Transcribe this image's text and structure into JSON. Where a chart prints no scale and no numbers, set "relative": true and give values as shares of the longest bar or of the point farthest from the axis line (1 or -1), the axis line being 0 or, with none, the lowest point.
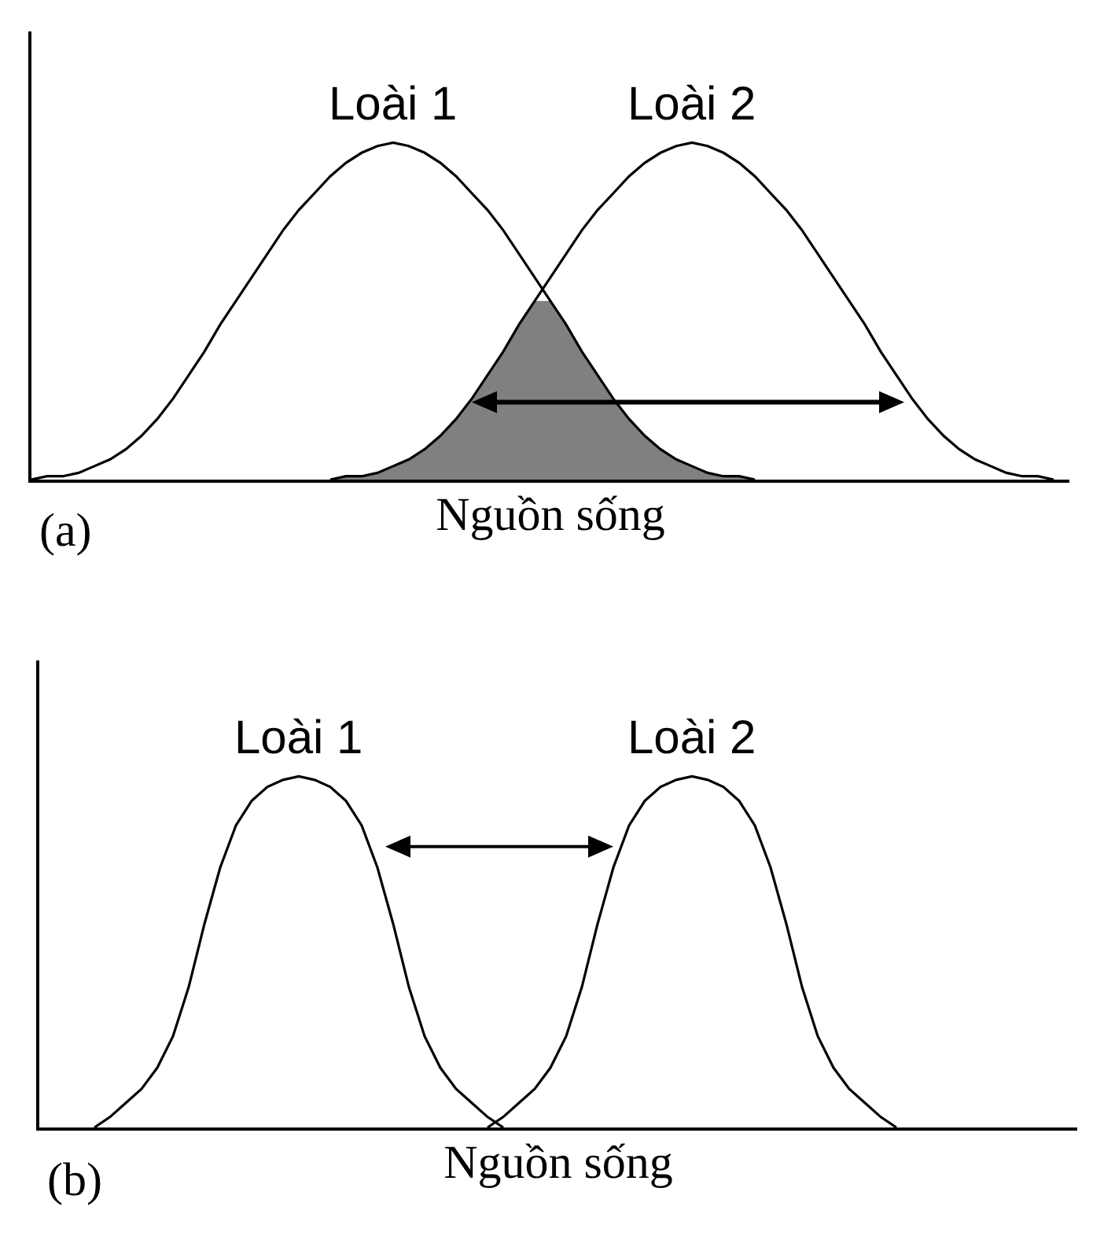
{
  "chart_data": [
    {
      "type": "line",
      "relative": true,
      "xlabel": "Nguồn sống",
      "annotations": [
        "(a)"
      ],
      "tick_labels": false,
      "grid": false,
      "categories": [
        null,
        null,
        null,
        null,
        null,
        null,
        null,
        null,
        null,
        null,
        null,
        null,
        null,
        null,
        null,
        null,
        null,
        null,
        null,
        null,
        null,
        null,
        null,
        null,
        null,
        null,
        null,
        null,
        null,
        null,
        null,
        null,
        null,
        null,
        null,
        null,
        null,
        null,
        null,
        null,
        null,
        null,
        null,
        null,
        null,
        null,
        null,
        null,
        null,
        null,
        null,
        null,
        null,
        null,
        null,
        null,
        null,
        null,
        null,
        null,
        null,
        null,
        null,
        null,
        null,
        null,
        null
      ],
      "series": [
        {
          "type": "area",
          "color": "#808080",
          "values": [
            null,
            null,
            null,
            null,
            null,
            null,
            null,
            null,
            null,
            null,
            null,
            null,
            null,
            null,
            null,
            null,
            null,
            null,
            null,
            0,
            0.01,
            0.01,
            0.02,
            0.04,
            0.06,
            0.09,
            0.13,
            0.18,
            0.24,
            0.31,
            0.38,
            0.46,
            0.53,
            0.53,
            0.46,
            0.38,
            0.31,
            0.24,
            0.18,
            0.13,
            0.09,
            0.06,
            0.04,
            0.02,
            0.01,
            0.01,
            0,
            null,
            null,
            null,
            null,
            null,
            null,
            null,
            null,
            null,
            null,
            null,
            null,
            null,
            null,
            null,
            null,
            null,
            null,
            null,
            null
          ]
        },
        {
          "name": "Loài 1",
          "color": "#000000",
          "values": [
            0,
            0.01,
            0.01,
            0.02,
            0.04,
            0.06,
            0.09,
            0.13,
            0.18,
            0.24,
            0.31,
            0.38,
            0.46,
            0.53,
            0.6,
            0.67,
            0.74,
            0.8,
            0.85,
            0.9,
            0.94,
            0.97,
            0.99,
            1,
            0.99,
            0.97,
            0.94,
            0.9,
            0.85,
            0.8,
            0.74,
            0.67,
            0.6,
            0.53,
            0.46,
            0.38,
            0.31,
            0.24,
            0.18,
            0.13,
            0.09,
            0.06,
            0.04,
            0.02,
            0.01,
            0.01,
            0,
            null,
            null,
            null,
            null,
            null,
            null,
            null,
            null,
            null,
            null,
            null,
            null,
            null,
            null,
            null,
            null,
            null,
            null,
            null,
            null
          ]
        },
        {
          "name": "Loài 2",
          "color": "#000000",
          "values": [
            null,
            null,
            null,
            null,
            null,
            null,
            null,
            null,
            null,
            null,
            null,
            null,
            null,
            null,
            null,
            null,
            null,
            null,
            null,
            0,
            0.01,
            0.01,
            0.02,
            0.04,
            0.06,
            0.09,
            0.13,
            0.18,
            0.24,
            0.31,
            0.38,
            0.46,
            0.53,
            0.6,
            0.67,
            0.74,
            0.8,
            0.85,
            0.9,
            0.94,
            0.97,
            0.99,
            1,
            0.99,
            0.97,
            0.94,
            0.9,
            0.85,
            0.8,
            0.74,
            0.67,
            0.6,
            0.53,
            0.46,
            0.38,
            0.31,
            0.24,
            0.18,
            0.13,
            0.09,
            0.06,
            0.04,
            0.02,
            0.01,
            0.01,
            0,
            null
          ]
        }
      ]
    },
    {
      "type": "line",
      "relative": true,
      "xlabel": "Nguồn sống",
      "annotations": [
        "(b)"
      ],
      "tick_labels": false,
      "grid": false,
      "categories": [
        null,
        null,
        null,
        null,
        null,
        null,
        null,
        null,
        null,
        null,
        null,
        null,
        null,
        null,
        null,
        null,
        null,
        null,
        null,
        null,
        null,
        null,
        null,
        null,
        null,
        null,
        null,
        null,
        null,
        null,
        null,
        null,
        null,
        null,
        null,
        null,
        null,
        null,
        null,
        null,
        null,
        null,
        null,
        null,
        null,
        null,
        null,
        null,
        null,
        null,
        null,
        null,
        null,
        null,
        null,
        null,
        null,
        null,
        null,
        null,
        null,
        null,
        null,
        null,
        null,
        null
      ],
      "series": [
        {
          "name": "Loài 1",
          "color": "#000000",
          "values": [
            null,
            null,
            null,
            0,
            0.03,
            0.07,
            0.11,
            0.17,
            0.26,
            0.4,
            0.58,
            0.74,
            0.86,
            0.93,
            0.97,
            0.99,
            1,
            0.99,
            0.97,
            0.93,
            0.86,
            0.74,
            0.58,
            0.4,
            0.26,
            0.17,
            0.11,
            0.07,
            0.03,
            0,
            null,
            null,
            null,
            null,
            null,
            null,
            null,
            null,
            null,
            null,
            null,
            null,
            null,
            null,
            null,
            null,
            null,
            null,
            null,
            null,
            null,
            null,
            null,
            null,
            null,
            null,
            null,
            null,
            null,
            null,
            null,
            null,
            null,
            null,
            null,
            null
          ]
        },
        {
          "name": "Loài 2",
          "color": "#000000",
          "values": [
            null,
            null,
            null,
            null,
            null,
            null,
            null,
            null,
            null,
            null,
            null,
            null,
            null,
            null,
            null,
            null,
            null,
            null,
            null,
            null,
            null,
            null,
            null,
            null,
            null,
            null,
            null,
            null,
            0,
            0.03,
            0.07,
            0.11,
            0.17,
            0.26,
            0.4,
            0.58,
            0.74,
            0.86,
            0.93,
            0.97,
            0.99,
            1,
            0.99,
            0.97,
            0.93,
            0.86,
            0.74,
            0.58,
            0.4,
            0.26,
            0.17,
            0.11,
            0.07,
            0.03,
            0,
            null,
            null,
            null,
            null,
            null,
            null,
            null,
            null,
            null,
            null,
            null
          ]
        }
      ]
    }
  ]
}
